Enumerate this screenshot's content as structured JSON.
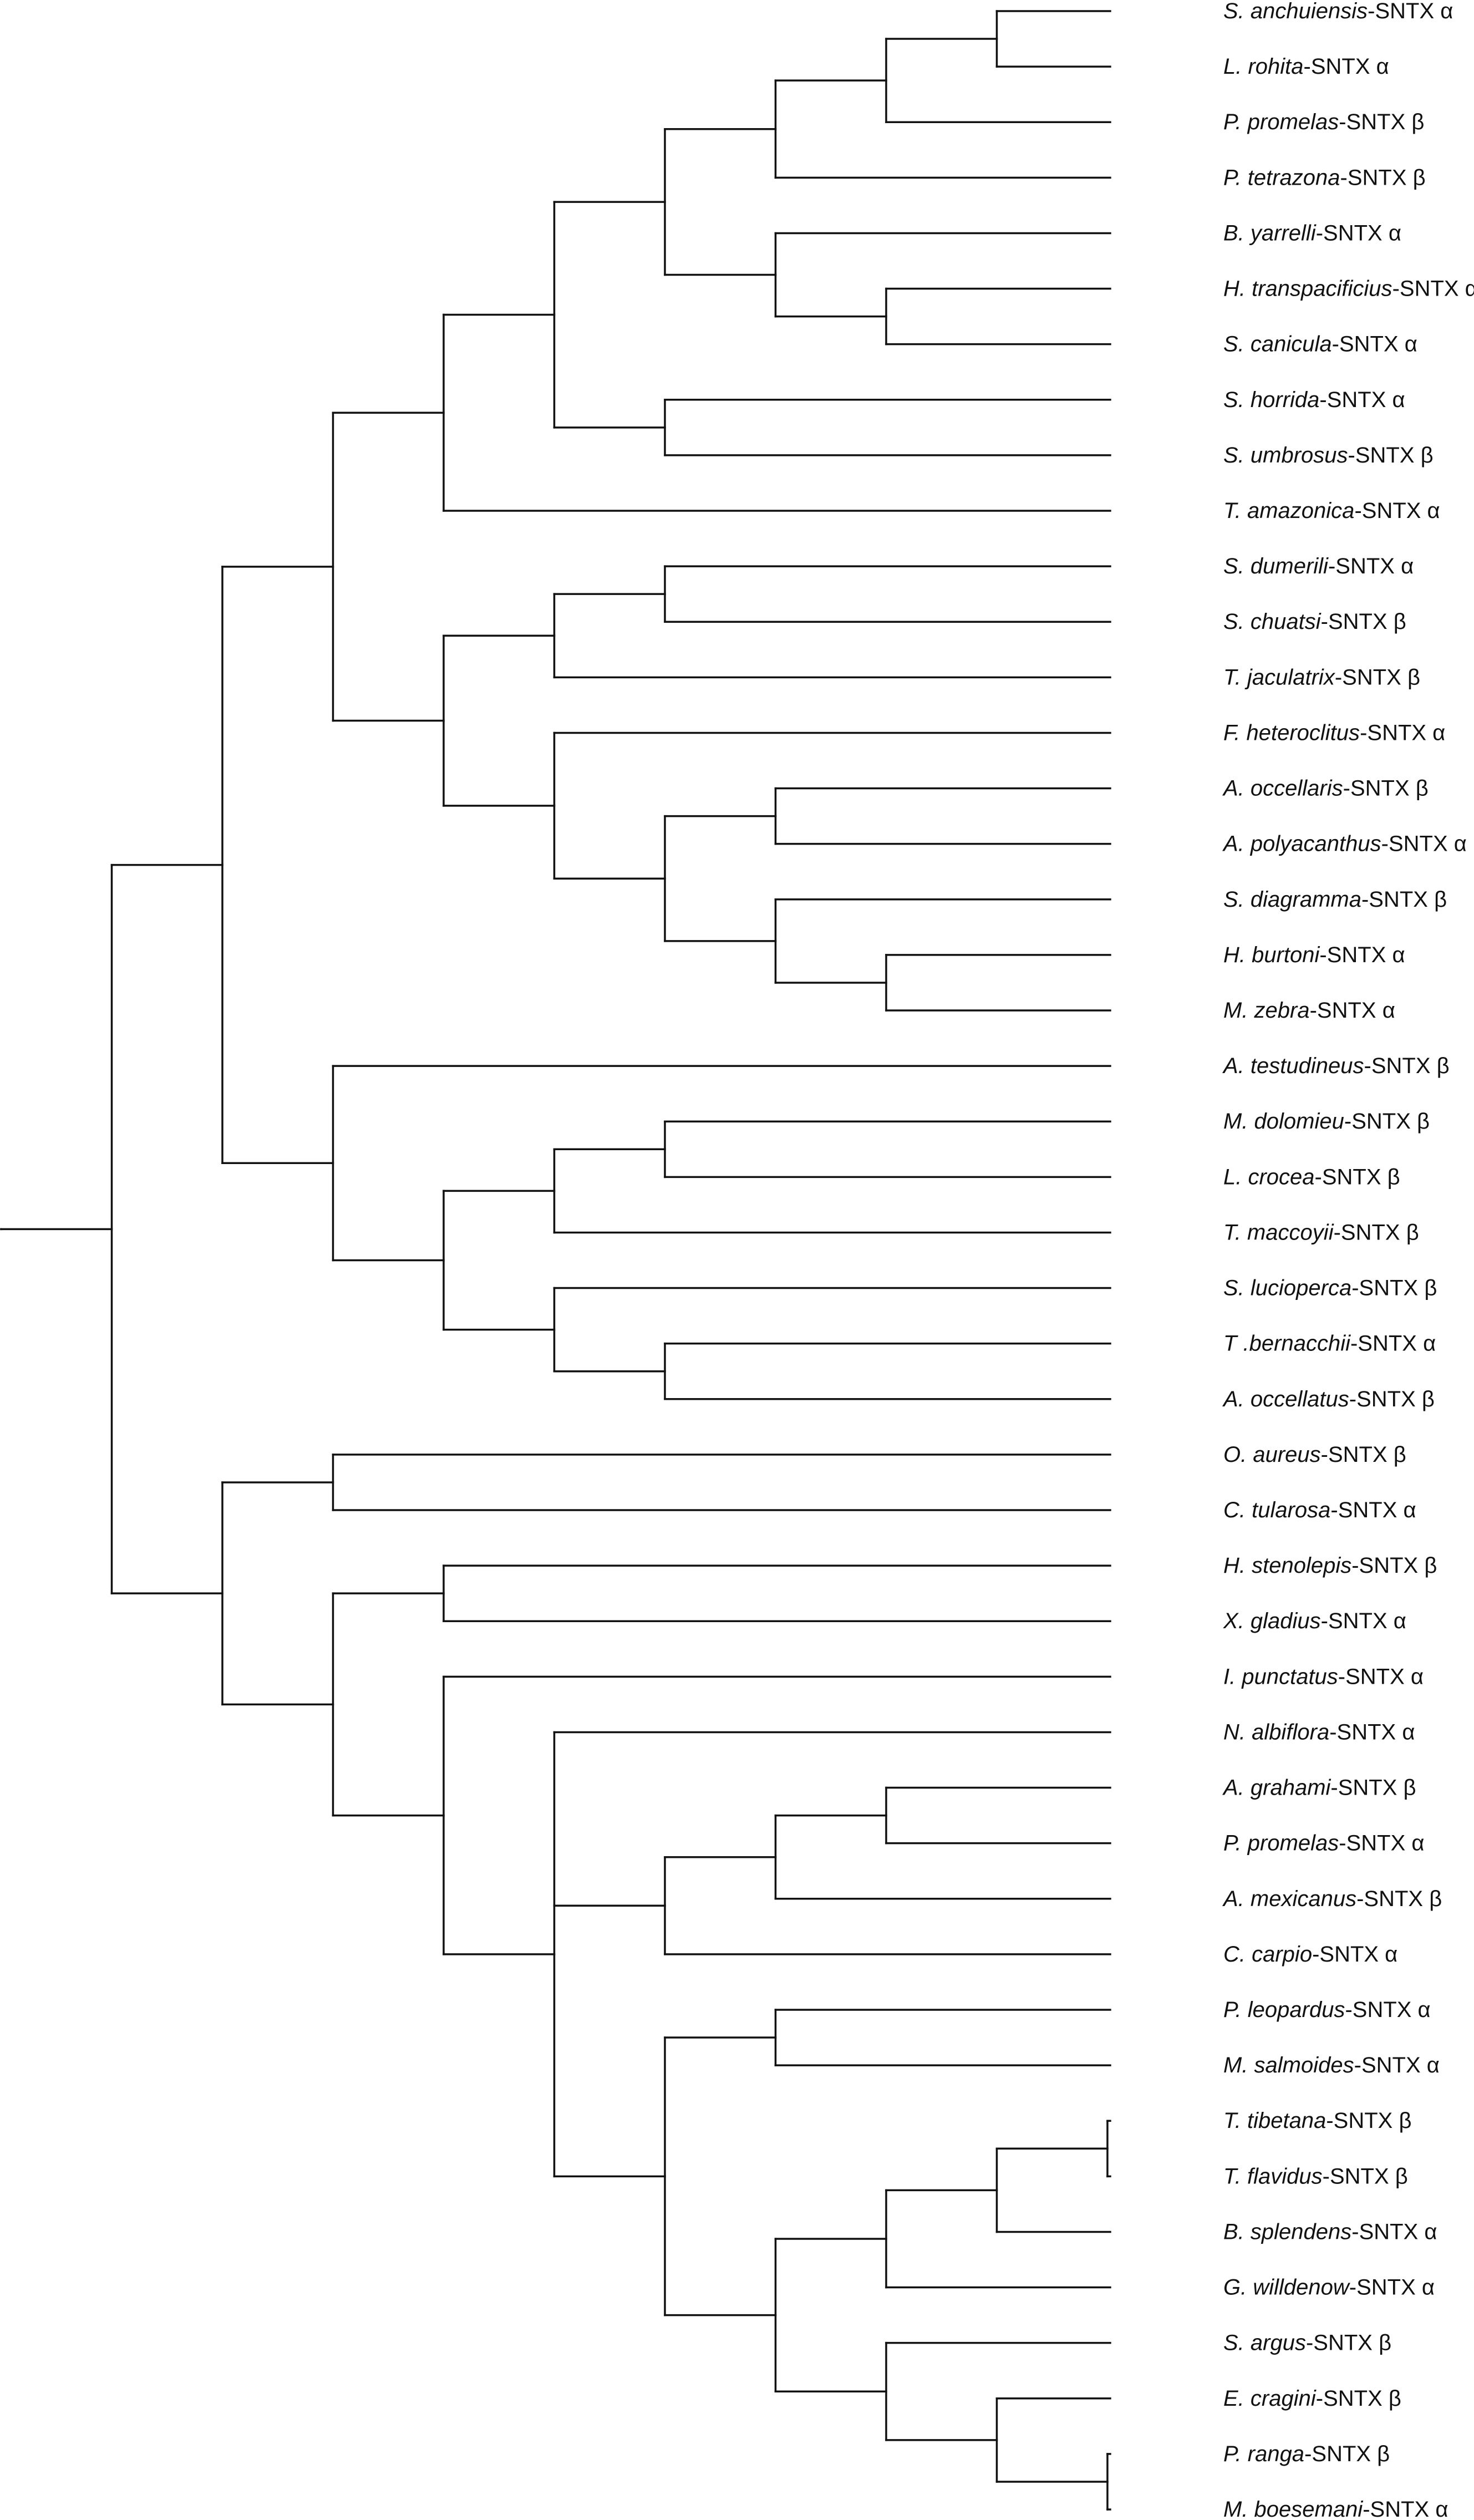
{
  "tree": {
    "leaves": [
      {
        "species": "S. anchuiensis",
        "suffix": "-SNTX α"
      },
      {
        "species": "L. rohita",
        "suffix": "-SNTX α"
      },
      {
        "species": "P. promelas",
        "suffix": "-SNTX β"
      },
      {
        "species": "P. tetrazona",
        "suffix": "-SNTX β"
      },
      {
        "species": "B. yarrelli",
        "suffix": "-SNTX α"
      },
      {
        "species": "H. transpacificius",
        "suffix": "-SNTX α"
      },
      {
        "species": "S. canicula",
        "suffix": "-SNTX α"
      },
      {
        "species": "S. horrida",
        "suffix": "-SNTX α"
      },
      {
        "species": "S. umbrosus",
        "suffix": "-SNTX β"
      },
      {
        "species": "T. amazonica",
        "suffix": "-SNTX α"
      },
      {
        "species": "S. dumerili",
        "suffix": "-SNTX α"
      },
      {
        "species": "S. chuatsi",
        "suffix": "-SNTX β"
      },
      {
        "species": "T. jaculatrix",
        "suffix": "-SNTX β"
      },
      {
        "species": "F. heteroclitus",
        "suffix": "-SNTX α"
      },
      {
        "species": "A. occellaris",
        "suffix": "-SNTX β"
      },
      {
        "species": "A. polyacanthus",
        "suffix": "-SNTX α"
      },
      {
        "species": "S. diagramma",
        "suffix": "-SNTX β"
      },
      {
        "species": "H. burtoni",
        "suffix": "-SNTX α"
      },
      {
        "species": "M. zebra",
        "suffix": "-SNTX α"
      },
      {
        "species": "A. testudineus",
        "suffix": "-SNTX β"
      },
      {
        "species": "M. dolomieu",
        "suffix": "-SNTX β"
      },
      {
        "species": "L. crocea",
        "suffix": "-SNTX β"
      },
      {
        "species": "T. maccoyii",
        "suffix": "-SNTX β"
      },
      {
        "species": "S. lucioperca",
        "suffix": "-SNTX β"
      },
      {
        "species": "T .bernacchii",
        "suffix": "-SNTX α"
      },
      {
        "species": "A. occellatus",
        "suffix": "-SNTX β"
      },
      {
        "species": "O. aureus",
        "suffix": "-SNTX β"
      },
      {
        "species": "C. tularosa",
        "suffix": "-SNTX α"
      },
      {
        "species": "H. stenolepis",
        "suffix": "-SNTX β"
      },
      {
        "species": "X. gladius",
        "suffix": "-SNTX α"
      },
      {
        "species": "I. punctatus",
        "suffix": "-SNTX α"
      },
      {
        "species": "N. albiflora",
        "suffix": "-SNTX α"
      },
      {
        "species": "A. grahami",
        "suffix": "-SNTX β"
      },
      {
        "species": "P. promelas",
        "suffix": "-SNTX α"
      },
      {
        "species": "A. mexicanus",
        "suffix": "-SNTX β"
      },
      {
        "species": "C. carpio",
        "suffix": "-SNTX α"
      },
      {
        "species": "P. leopardus",
        "suffix": "-SNTX α"
      },
      {
        "species": "M. salmoides",
        "suffix": "-SNTX α"
      },
      {
        "species": "T. tibetana",
        "suffix": "-SNTX β"
      },
      {
        "species": "T. flavidus",
        "suffix": "-SNTX β"
      },
      {
        "species": "B. splendens",
        "suffix": "-SNTX α"
      },
      {
        "species": "G. willdenow",
        "suffix": "-SNTX α"
      },
      {
        "species": "S. argus",
        "suffix": "-SNTX β"
      },
      {
        "species": "E. cragini",
        "suffix": "-SNTX β"
      },
      {
        "species": "P. ranga",
        "suffix": "-SNTX β"
      },
      {
        "species": "M. boesemani",
        "suffix": "-SNTX α"
      }
    ],
    "newick": "((((((((((0,1),2),3),(4,(5,6))),(7,8)),9),(((10,11),12),(13,((14,15),(16,(17,18)))))),(19,(((20,21),22),(23,(24,25))))),((26,27),((28,29),(30,(31,(((32,33),34),35),((36,37),((((38,39),40),41),(42,(43,(44,45)))))))))))"
  }
}
